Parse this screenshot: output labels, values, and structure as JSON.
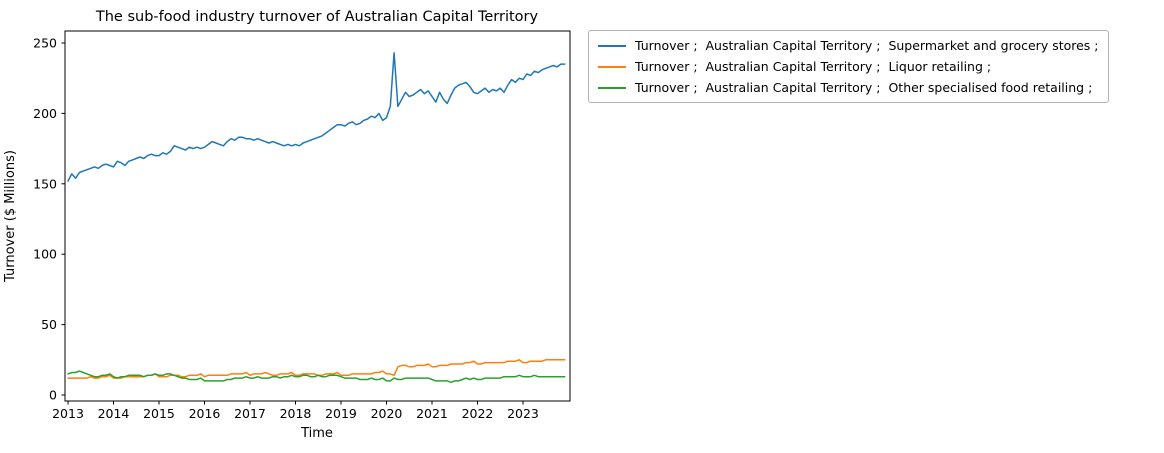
{
  "chart_data": {
    "type": "line",
    "title": "The sub-food industry turnover of Australian Capital Territory",
    "xlabel": "Time",
    "ylabel": "Turnover ($ Millions)",
    "ylim": [
      0,
      250
    ],
    "y_ticks": [
      0,
      50,
      100,
      150,
      200,
      250
    ],
    "x_start_year": 2013,
    "x_ticks": [
      2013,
      2014,
      2015,
      2016,
      2017,
      2018,
      2019,
      2020,
      2021,
      2022,
      2023
    ],
    "frequency": "monthly",
    "grid": false,
    "legend_position": "outside-upper-right",
    "series": [
      {
        "name": "Turnover ;  Australian Capital Territory ;  Supermarket and grocery stores ;",
        "color": "#1f77b4",
        "values": [
          152,
          157,
          154,
          158,
          159,
          160,
          161,
          162,
          161,
          163,
          164,
          163,
          162,
          166,
          165,
          163,
          166,
          167,
          168,
          169,
          168,
          170,
          171,
          170,
          170,
          172,
          171,
          173,
          177,
          176,
          175,
          174,
          176,
          175,
          176,
          175,
          176,
          178,
          180,
          179,
          178,
          177,
          180,
          182,
          181,
          183,
          183,
          182,
          182,
          181,
          182,
          181,
          180,
          179,
          180,
          179,
          178,
          177,
          178,
          177,
          178,
          177,
          179,
          180,
          181,
          182,
          183,
          184,
          186,
          188,
          190,
          192,
          192,
          191,
          193,
          194,
          192,
          193,
          195,
          196,
          198,
          197,
          200,
          195,
          197,
          205,
          243,
          205,
          210,
          215,
          212,
          213,
          215,
          217,
          214,
          216,
          212,
          208,
          215,
          210,
          207,
          213,
          218,
          220,
          221,
          222,
          219,
          215,
          214,
          216,
          218,
          215,
          217,
          216,
          218,
          215,
          220,
          224,
          222,
          225,
          224,
          228,
          227,
          230,
          229,
          231,
          232,
          233,
          234,
          233,
          235,
          235
        ]
      },
      {
        "name": "Turnover ;  Australian Capital Territory ;  Liquor retailing ;",
        "color": "#ff7f0e",
        "values": [
          12,
          12,
          12,
          12,
          12,
          12,
          13,
          12,
          12,
          13,
          13,
          14,
          12,
          12,
          12,
          13,
          13,
          13,
          13,
          13,
          13,
          14,
          14,
          15,
          13,
          13,
          13,
          14,
          14,
          14,
          13,
          13,
          14,
          14,
          14,
          15,
          13,
          14,
          14,
          14,
          14,
          14,
          14,
          15,
          15,
          15,
          15,
          16,
          14,
          15,
          15,
          15,
          16,
          15,
          14,
          14,
          15,
          15,
          15,
          16,
          14,
          14,
          15,
          15,
          15,
          15,
          14,
          14,
          15,
          15,
          15,
          16,
          14,
          14,
          14,
          15,
          15,
          15,
          15,
          15,
          15,
          16,
          16,
          17,
          15,
          15,
          14,
          20,
          21,
          21,
          20,
          20,
          21,
          21,
          21,
          22,
          20,
          20,
          21,
          21,
          21,
          22,
          22,
          22,
          22,
          23,
          23,
          24,
          22,
          22,
          23,
          23,
          23,
          23,
          23,
          23,
          24,
          24,
          24,
          25,
          23,
          23,
          24,
          24,
          24,
          24,
          25,
          25,
          25,
          25,
          25,
          25
        ]
      },
      {
        "name": "Turnover ;  Australian Capital Territory ;  Other specialised food retailing ;",
        "color": "#2ca02c",
        "values": [
          15,
          16,
          16,
          17,
          16,
          15,
          14,
          13,
          13,
          14,
          14,
          15,
          13,
          12,
          13,
          13,
          14,
          14,
          14,
          14,
          13,
          14,
          14,
          15,
          14,
          14,
          15,
          15,
          14,
          13,
          12,
          12,
          11,
          11,
          11,
          12,
          10,
          10,
          10,
          10,
          10,
          10,
          11,
          11,
          12,
          12,
          12,
          13,
          12,
          12,
          13,
          12,
          12,
          12,
          13,
          13,
          12,
          13,
          13,
          14,
          13,
          13,
          14,
          14,
          13,
          13,
          14,
          13,
          13,
          14,
          14,
          14,
          13,
          12,
          12,
          12,
          12,
          11,
          11,
          11,
          12,
          11,
          11,
          12,
          10,
          10,
          12,
          11,
          11,
          12,
          12,
          12,
          12,
          12,
          12,
          12,
          11,
          10,
          10,
          10,
          10,
          9,
          10,
          10,
          11,
          12,
          11,
          12,
          11,
          11,
          12,
          12,
          12,
          12,
          12,
          13,
          13,
          13,
          13,
          14,
          13,
          13,
          13,
          14,
          13,
          13,
          13,
          13,
          13,
          13,
          13,
          13
        ]
      }
    ]
  }
}
